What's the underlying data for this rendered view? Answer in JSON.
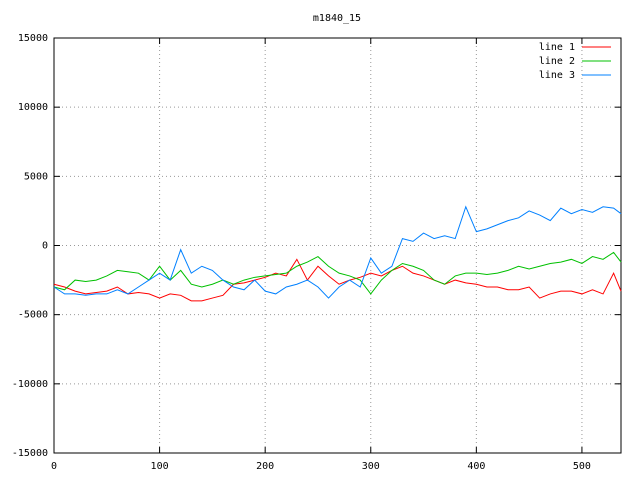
{
  "chart_data": {
    "type": "line",
    "title": "m1840_15",
    "x": [
      0,
      10,
      20,
      30,
      40,
      50,
      60,
      70,
      80,
      90,
      100,
      110,
      120,
      130,
      140,
      150,
      160,
      170,
      180,
      190,
      200,
      210,
      220,
      230,
      240,
      250,
      260,
      270,
      280,
      290,
      300,
      310,
      320,
      330,
      340,
      350,
      360,
      370,
      380,
      390,
      400,
      410,
      420,
      430,
      440,
      450,
      460,
      470,
      480,
      490,
      500,
      510,
      520,
      530,
      537
    ],
    "series": [
      {
        "name": "line 1",
        "color": "#ff0000",
        "values": [
          -2800,
          -3000,
          -3300,
          -3500,
          -3400,
          -3300,
          -3000,
          -3500,
          -3400,
          -3500,
          -3800,
          -3500,
          -3600,
          -4000,
          -4000,
          -3800,
          -3600,
          -2800,
          -2700,
          -2500,
          -2300,
          -2000,
          -2200,
          -1000,
          -2500,
          -1500,
          -2200,
          -2800,
          -2500,
          -2300,
          -2000,
          -2200,
          -1800,
          -1500,
          -2000,
          -2200,
          -2500,
          -2800,
          -2500,
          -2700,
          -2800,
          -3000,
          -3000,
          -3200,
          -3200,
          -3000,
          -3800,
          -3500,
          -3300,
          -3300,
          -3500,
          -3200,
          -3500,
          -2000,
          -3300
        ]
      },
      {
        "name": "line 2",
        "color": "#00c000",
        "values": [
          -3000,
          -3200,
          -2500,
          -2600,
          -2500,
          -2200,
          -1800,
          -1900,
          -2000,
          -2500,
          -1500,
          -2500,
          -1800,
          -2800,
          -3000,
          -2800,
          -2500,
          -2800,
          -2500,
          -2300,
          -2200,
          -2100,
          -2000,
          -1500,
          -1200,
          -800,
          -1500,
          -2000,
          -2200,
          -2500,
          -3500,
          -2500,
          -1800,
          -1300,
          -1500,
          -1800,
          -2500,
          -2800,
          -2200,
          -2000,
          -2000,
          -2100,
          -2000,
          -1800,
          -1500,
          -1700,
          -1500,
          -1300,
          -1200,
          -1000,
          -1300,
          -800,
          -1000,
          -500,
          -1200
        ]
      },
      {
        "name": "line 3",
        "color": "#0080ff",
        "values": [
          -3000,
          -3500,
          -3500,
          -3600,
          -3500,
          -3500,
          -3200,
          -3500,
          -3000,
          -2500,
          -2000,
          -2500,
          -300,
          -2000,
          -1500,
          -1800,
          -2500,
          -3000,
          -3200,
          -2500,
          -3300,
          -3500,
          -3000,
          -2800,
          -2500,
          -3000,
          -3800,
          -3000,
          -2500,
          -3000,
          -900,
          -2000,
          -1500,
          500,
          300,
          900,
          500,
          700,
          500,
          2800,
          1000,
          1200,
          1500,
          1800,
          2000,
          2500,
          2200,
          1800,
          2700,
          2300,
          2600,
          2400,
          2800,
          2700,
          2300
        ]
      }
    ],
    "xlim": [
      0,
      537
    ],
    "ylim": [
      -15000,
      15000
    ],
    "xticks": [
      0,
      100,
      200,
      300,
      400,
      500
    ],
    "yticks": [
      -15000,
      -10000,
      -5000,
      0,
      5000,
      10000,
      15000
    ],
    "grid": true,
    "legend": "top-right"
  }
}
